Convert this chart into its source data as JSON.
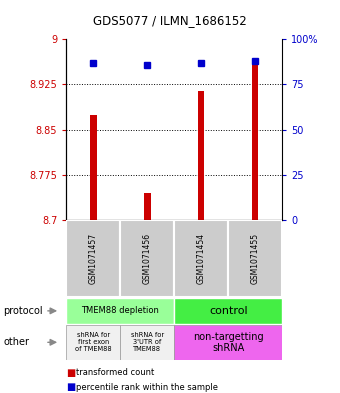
{
  "title": "GDS5077 / ILMN_1686152",
  "samples": [
    "GSM1071457",
    "GSM1071456",
    "GSM1071454",
    "GSM1071455"
  ],
  "transformed_counts": [
    8.875,
    8.745,
    8.915,
    8.965
  ],
  "percentile_ranks": [
    87,
    86,
    87,
    88
  ],
  "ylim_left": [
    8.7,
    9.0
  ],
  "ylim_right": [
    0,
    100
  ],
  "yticks_left": [
    8.7,
    8.775,
    8.85,
    8.925,
    9.0
  ],
  "yticks_right": [
    0,
    25,
    50,
    75,
    100
  ],
  "ytick_labels_left": [
    "8.7",
    "8.775",
    "8.85",
    "8.925",
    "9"
  ],
  "ytick_labels_right": [
    "0",
    "25",
    "50",
    "75",
    "100%"
  ],
  "bar_color": "#cc0000",
  "dot_color": "#0000cc",
  "protocol_labels": [
    "TMEM88 depletion",
    "control"
  ],
  "other_labels": [
    "shRNA for\nfirst exon\nof TMEM88",
    "shRNA for\n3'UTR of\nTMEM88",
    "non-targetting\nshRNA"
  ],
  "protocol_colors": [
    "#99ff99",
    "#44ee44"
  ],
  "other_colors": [
    "#f0f0f0",
    "#f0f0f0",
    "#ee66ee"
  ],
  "legend_red_label": "transformed count",
  "legend_blue_label": "percentile rank within the sample",
  "bg_color": "#ffffff",
  "grid_color": "#000000",
  "tick_color_left": "#cc0000",
  "tick_color_right": "#0000cc"
}
